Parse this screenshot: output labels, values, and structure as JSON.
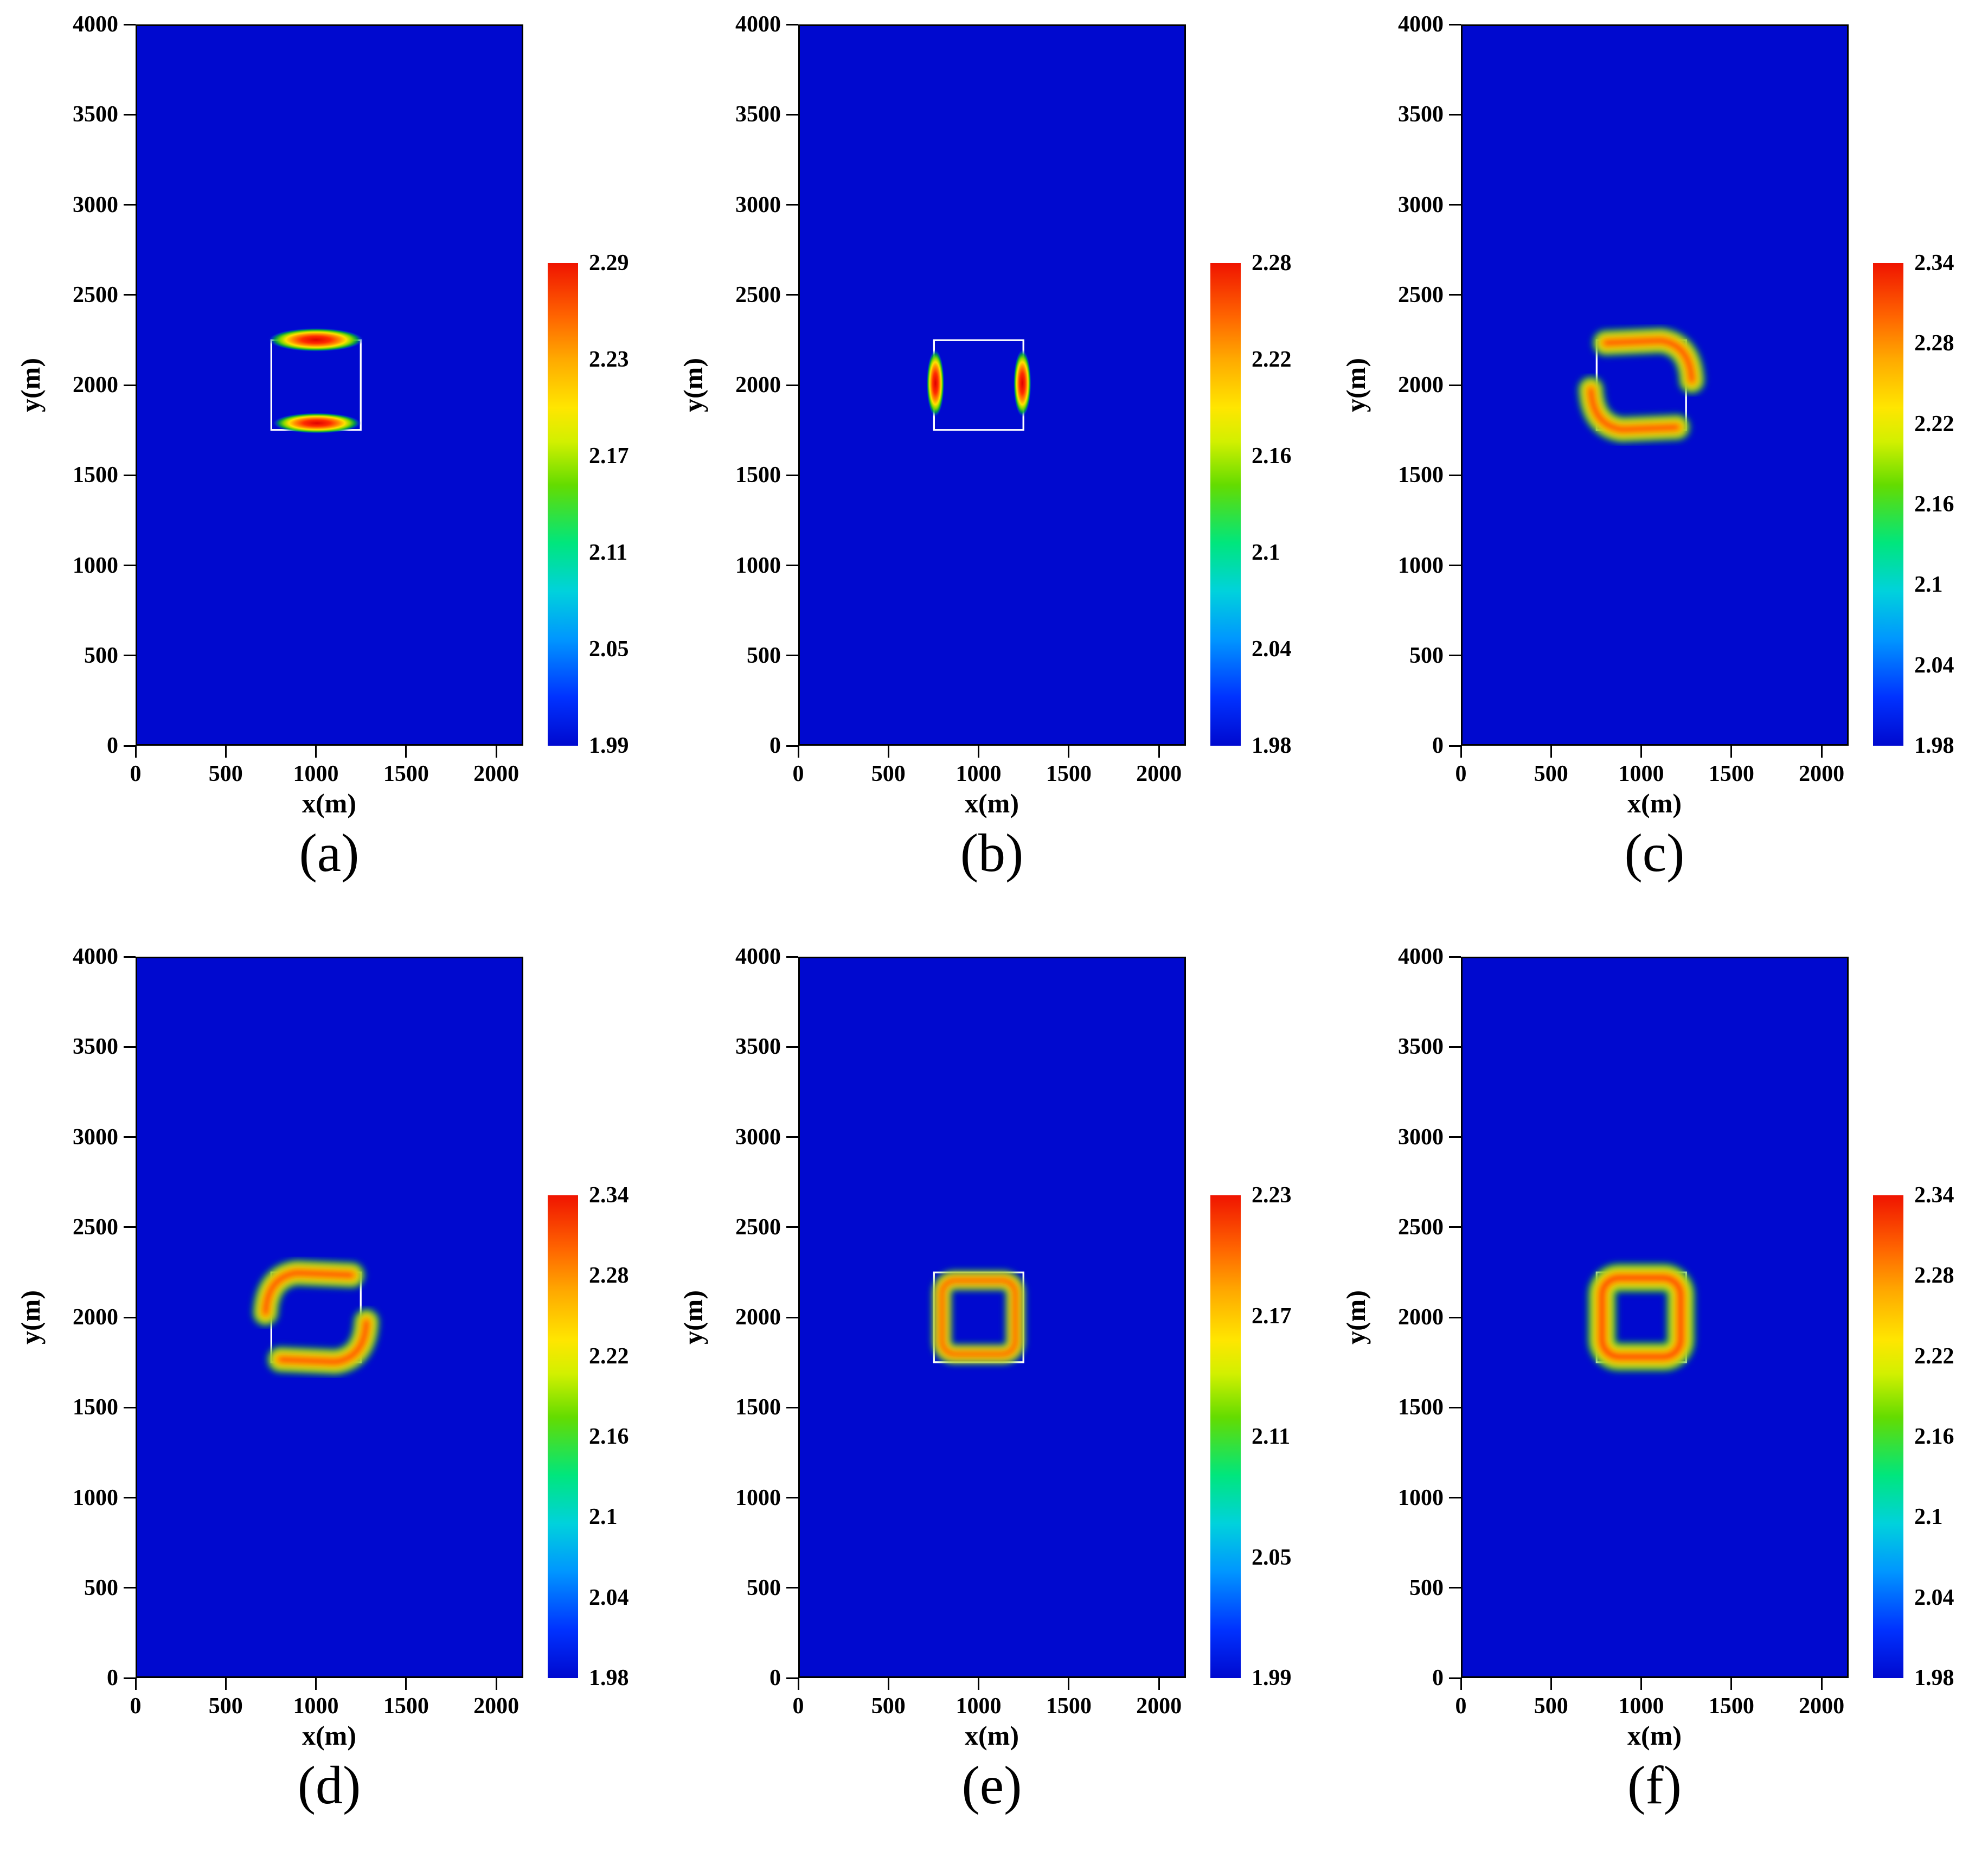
{
  "figure": {
    "type": "scientific-figure",
    "layout": "2x3 grid of velocity-field heatmap panels",
    "background": "#ffffff",
    "field_color": "#0009cf",
    "square_color": "#ffffff",
    "axis_color": "#000000",
    "colormap": "jet"
  },
  "chart_data": [
    {
      "type": "heatmap",
      "panel_label": "(a)",
      "xlabel": "x(m)",
      "ylabel": "y(m)",
      "xlim": [
        0,
        2150
      ],
      "ylim": [
        0,
        4000
      ],
      "x_ticks": [
        0,
        500,
        1000,
        1500,
        2000
      ],
      "y_ticks": [
        0,
        500,
        1000,
        1500,
        2000,
        2500,
        3000,
        3500,
        4000
      ],
      "background_value": 1.99,
      "colorbar": {
        "min": 1.99,
        "max": 2.29,
        "labels": [
          "2.29",
          "2.23",
          "2.17",
          "2.11",
          "2.05",
          "1.99"
        ]
      },
      "square_region": {
        "x_range": [
          750,
          1250
        ],
        "y_range": [
          1750,
          2250
        ]
      },
      "anomaly_pattern": "top-bottom-edges",
      "anomaly_description": "High-value lobes along the top and bottom edges of the square region"
    },
    {
      "type": "heatmap",
      "panel_label": "(b)",
      "xlabel": "x(m)",
      "ylabel": "y(m)",
      "xlim": [
        0,
        2150
      ],
      "ylim": [
        0,
        4000
      ],
      "x_ticks": [
        0,
        500,
        1000,
        1500,
        2000
      ],
      "y_ticks": [
        0,
        500,
        1000,
        1500,
        2000,
        2500,
        3000,
        3500,
        4000
      ],
      "background_value": 1.98,
      "colorbar": {
        "min": 1.98,
        "max": 2.28,
        "labels": [
          "2.28",
          "2.22",
          "2.16",
          "2.1",
          "2.04",
          "1.98"
        ]
      },
      "square_region": {
        "x_range": [
          750,
          1250
        ],
        "y_range": [
          1750,
          2250
        ]
      },
      "anomaly_pattern": "left-right-edges",
      "anomaly_description": "High-value vertical lobes along the left and right edges of the square region"
    },
    {
      "type": "heatmap",
      "panel_label": "(c)",
      "xlabel": "x(m)",
      "ylabel": "y(m)",
      "xlim": [
        0,
        2150
      ],
      "ylim": [
        0,
        4000
      ],
      "x_ticks": [
        0,
        500,
        1000,
        1500,
        2000
      ],
      "y_ticks": [
        0,
        500,
        1000,
        1500,
        2000,
        2500,
        3000,
        3500,
        4000
      ],
      "background_value": 1.98,
      "colorbar": {
        "min": 1.98,
        "max": 2.34,
        "labels": [
          "2.34",
          "2.28",
          "2.22",
          "2.16",
          "2.1",
          "2.04",
          "1.98"
        ]
      },
      "square_region": {
        "x_range": [
          750,
          1250
        ],
        "y_range": [
          1750,
          2250
        ]
      },
      "anomaly_pattern": "diagonal-tr-bl",
      "anomaly_description": "Rotational pattern: lobe along top edge bending down the right side and lobe along bottom edge bending up the left side"
    },
    {
      "type": "heatmap",
      "panel_label": "(d)",
      "xlabel": "x(m)",
      "ylabel": "y(m)",
      "xlim": [
        0,
        2150
      ],
      "ylim": [
        0,
        4000
      ],
      "x_ticks": [
        0,
        500,
        1000,
        1500,
        2000
      ],
      "y_ticks": [
        0,
        500,
        1000,
        1500,
        2000,
        2500,
        3000,
        3500,
        4000
      ],
      "background_value": 1.98,
      "colorbar": {
        "min": 1.98,
        "max": 2.34,
        "labels": [
          "2.34",
          "2.28",
          "2.22",
          "2.16",
          "2.1",
          "2.04",
          "1.98"
        ]
      },
      "square_region": {
        "x_range": [
          750,
          1250
        ],
        "y_range": [
          1750,
          2250
        ]
      },
      "anomaly_pattern": "diagonal-tl-br",
      "anomaly_description": "Rotational pattern: lobe along top edge bending down the left side and lobe along bottom edge bending up the right side"
    },
    {
      "type": "heatmap",
      "panel_label": "(e)",
      "xlabel": "x(m)",
      "ylabel": "y(m)",
      "xlim": [
        0,
        2150
      ],
      "ylim": [
        0,
        4000
      ],
      "x_ticks": [
        0,
        500,
        1000,
        1500,
        2000
      ],
      "y_ticks": [
        0,
        500,
        1000,
        1500,
        2000,
        2500,
        3000,
        3500,
        4000
      ],
      "background_value": 1.99,
      "colorbar": {
        "min": 1.99,
        "max": 2.23,
        "labels": [
          "2.23",
          "2.17",
          "2.11",
          "2.05",
          "1.99"
        ]
      },
      "square_region": {
        "x_range": [
          750,
          1250
        ],
        "y_range": [
          1750,
          2250
        ]
      },
      "anomaly_pattern": "ring-thin",
      "anomaly_description": "Closed high-value ring along the whole square boundary"
    },
    {
      "type": "heatmap",
      "panel_label": "(f)",
      "xlabel": "x(m)",
      "ylabel": "y(m)",
      "xlim": [
        0,
        2150
      ],
      "ylim": [
        0,
        4000
      ],
      "x_ticks": [
        0,
        500,
        1000,
        1500,
        2000
      ],
      "y_ticks": [
        0,
        500,
        1000,
        1500,
        2000,
        2500,
        3000,
        3500,
        4000
      ],
      "background_value": 1.98,
      "colorbar": {
        "min": 1.98,
        "max": 2.34,
        "labels": [
          "2.34",
          "2.28",
          "2.22",
          "2.16",
          "2.1",
          "2.04",
          "1.98"
        ]
      },
      "square_region": {
        "x_range": [
          750,
          1250
        ],
        "y_range": [
          1750,
          2250
        ]
      },
      "anomaly_pattern": "ring-thick",
      "anomaly_description": "Thicker closed high-value ring along the whole square boundary"
    }
  ]
}
